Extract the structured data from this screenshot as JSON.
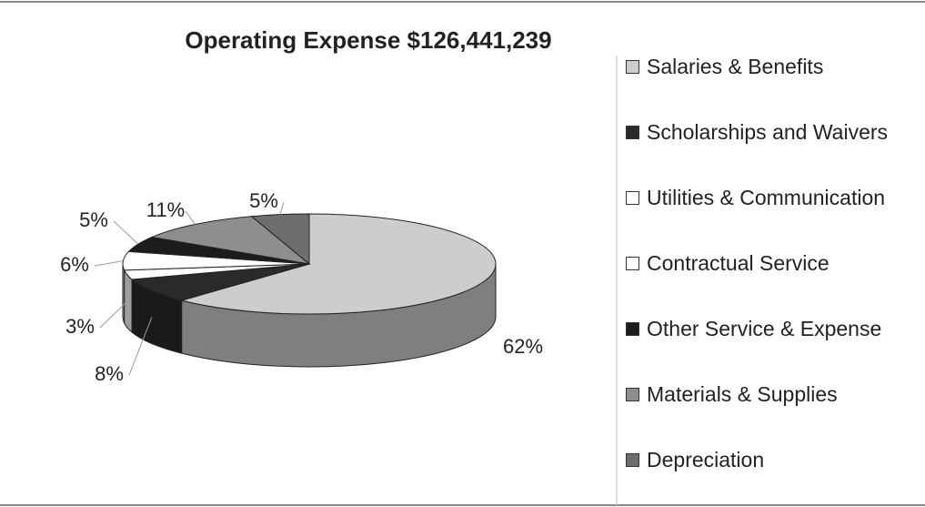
{
  "chart_data": {
    "type": "pie3d",
    "title": "Operating Expense $126,441,239",
    "categories": [
      "Salaries & Benefits",
      "Scholarships and Waivers",
      "Utilities & Communication",
      "Contractual Service",
      "Other Service & Expense",
      "Materials & Supplies",
      "Depreciation"
    ],
    "values": [
      62,
      8,
      3,
      6,
      5,
      11,
      5
    ],
    "value_labels": [
      "62%",
      "8%",
      "3%",
      "6%",
      "5%",
      "11%",
      "5%"
    ],
    "colors": [
      "#cdcdcd",
      "#2a2a2a",
      "#ffffff",
      "#ffffff",
      "#1c1c1c",
      "#8e8e8e",
      "#6e6e6e"
    ],
    "legend": "right"
  }
}
